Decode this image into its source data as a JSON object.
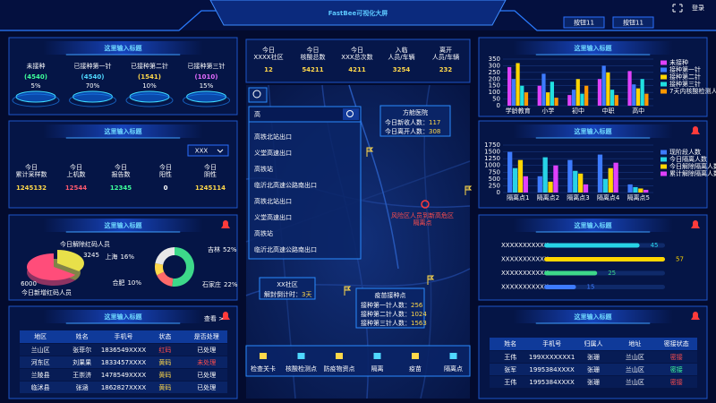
{
  "header": {
    "title": "FastBee可视化大屏",
    "buttons": [
      "按钮11",
      "按钮11"
    ],
    "login": "登录"
  },
  "vaccination": {
    "title": "这里输入标题",
    "items": [
      {
        "label": "未接种",
        "count": "(4540)",
        "percent": "5%",
        "color": "#3dff9a"
      },
      {
        "label": "已接种第一针",
        "count": "(4540)",
        "percent": "70%",
        "color": "#4fd8ff"
      },
      {
        "label": "已接种第二针",
        "count": "(1541)",
        "percent": "10%",
        "color": "#ffd84a"
      },
      {
        "label": "已接种第三针",
        "count": "(1010)",
        "percent": "15%",
        "color": "#e46bff"
      }
    ]
  },
  "sampling": {
    "title": "这里输入标题",
    "select": "XXX",
    "stats": [
      {
        "label": [
          "今日",
          "累计采样数"
        ],
        "value": 1245132,
        "color": "#ffd84a"
      },
      {
        "label": [
          "今日",
          "上机数"
        ],
        "value": 12544,
        "color": "#ff5a6e"
      },
      {
        "label": [
          "今日",
          "报告数"
        ],
        "value": 12345,
        "color": "#3dff9a"
      },
      {
        "label": [
          "今日",
          "阳性"
        ],
        "value": 0,
        "color": "#ffffff"
      },
      {
        "label": [
          "今日",
          "阴性"
        ],
        "value": 1245114,
        "color": "#ffd84a"
      }
    ]
  },
  "records": {
    "title": "这里输入标题",
    "more": "查看 >",
    "columns": [
      "地区",
      "姓名",
      "手机号",
      "状态",
      "是否处理"
    ],
    "rows": [
      [
        "兰山区",
        "张菲尔",
        "1836549XXXX",
        "红码",
        "已处理"
      ],
      [
        "河东区",
        "刘果果",
        "1833457XXXX",
        "黄码",
        "未处理"
      ],
      [
        "兰陵县",
        "王崇济",
        "1478549XXXX",
        "黄码",
        "已处理"
      ],
      [
        "临沭县",
        "张涵",
        "1862827XXXX",
        "黄码",
        "已处理"
      ]
    ],
    "colors": [
      [
        "#fff",
        "#fff",
        "#fff",
        "#ff4d4d",
        "#fff"
      ],
      [
        "#fff",
        "#fff",
        "#fff",
        "#ffd84a",
        "#ff4d4d"
      ],
      [
        "#fff",
        "#fff",
        "#fff",
        "#ffd84a",
        "#fff"
      ],
      [
        "#fff",
        "#fff",
        "#fff",
        "#ffd84a",
        "#fff"
      ]
    ]
  },
  "center": {
    "stats": [
      {
        "label": [
          "今日",
          "XXXX社区"
        ],
        "value": 12
      },
      {
        "label": [
          "今日",
          "核酸总数"
        ],
        "value": 54211
      },
      {
        "label": [
          "今日",
          "XXX总次数"
        ],
        "value": 4211
      },
      {
        "label": [
          "入临",
          "人员/车辆"
        ],
        "value": 3254
      },
      {
        "label": [
          "离开",
          "人员/车辆"
        ],
        "value": 232
      }
    ],
    "search": {
      "query": "高",
      "results": [
        "高铁北站出口",
        "义堂高速出口",
        "高铁站",
        "临沂北高速公路南出口",
        "高铁北站出口",
        "义堂高速出口",
        "高铁站",
        "临沂北高速公路南出口"
      ]
    },
    "hospital": {
      "title": "方舱医院",
      "lines": [
        [
          "今日新收人数：",
          117
        ],
        [
          "今日离开人数：",
          308
        ]
      ]
    },
    "community": {
      "title": "XX社区",
      "lines": [
        [
          "解封倒计时：",
          "3天"
        ]
      ]
    },
    "vaccine_point": {
      "title": "疫苗接种点",
      "lines": [
        [
          "接种第一针人数：",
          256
        ],
        [
          "接种第二针人数：",
          1024
        ],
        [
          "接种第三针人数：",
          1563
        ]
      ]
    },
    "risk": [
      "风险区人员到新高危区",
      "隔离点"
    ],
    "toolbar": [
      "检查关卡",
      "核酸检测点",
      "防疫物资点",
      "隔离",
      "疫苗",
      "隔离点"
    ]
  },
  "contacts": {
    "title": "这里输入标题",
    "columns": [
      "姓名",
      "手机号",
      "归属人",
      "地址",
      "密接状态"
    ],
    "rows": [
      [
        "王伟",
        "199XXXXXXX1",
        "张珊",
        "兰山区",
        "密接"
      ],
      [
        "张军",
        "1995384XXXX",
        "张珊",
        "兰山区",
        "密接"
      ],
      [
        "王伟",
        "1995384XXXX",
        "张珊",
        "兰山区",
        "密接"
      ]
    ],
    "status_colors": [
      "#ff4d4d",
      "#3dff9a",
      "#ff4d4d"
    ]
  },
  "chart_data": [
    {
      "type": "pie3d",
      "title": "这里输入标题",
      "categories": [
        "今日解除红码人员",
        "今日新增红码人员"
      ],
      "values": [
        3245,
        6000
      ],
      "colors": [
        "#e8e04a",
        "#ff4d7a"
      ]
    },
    {
      "type": "donut",
      "categories": [
        "吉林",
        "上海",
        "合肥",
        "石家庄"
      ],
      "values": [
        52,
        16,
        10,
        22
      ],
      "value_labels": [
        "52%",
        "16%",
        "10%",
        "22%"
      ],
      "colors": [
        "#3dd98a",
        "#ff6a6a",
        "#ffd84a",
        "#e8e8e8"
      ]
    },
    {
      "type": "bar",
      "title": "这里输入标题",
      "categories": [
        "学龄教育",
        "小学",
        "初中",
        "中职",
        "高中"
      ],
      "series": [
        {
          "name": "未接种",
          "color": "#e040fb",
          "values": [
            290,
            150,
            80,
            200,
            260
          ]
        },
        {
          "name": "接种第一针",
          "color": "#3d7bff",
          "values": [
            200,
            240,
            120,
            300,
            160
          ]
        },
        {
          "name": "接种第二针",
          "color": "#ffd600",
          "values": [
            320,
            100,
            200,
            250,
            130
          ]
        },
        {
          "name": "接种第三针",
          "color": "#20e0e0",
          "values": [
            150,
            180,
            90,
            120,
            200
          ]
        },
        {
          "name": "7天内核酸检测人数",
          "color": "#ff9800",
          "values": [
            100,
            60,
            150,
            80,
            90
          ]
        }
      ],
      "ylim": [
        0,
        350
      ],
      "yticks": [
        0,
        50,
        100,
        150,
        200,
        250,
        300,
        350
      ]
    },
    {
      "type": "bar",
      "title": "这里输入标题",
      "categories": [
        "隔离点1",
        "隔离点2",
        "隔离点3",
        "隔离点4",
        "隔离点5"
      ],
      "series": [
        {
          "name": "现阶段人数",
          "color": "#3d7bff",
          "values": [
            1500,
            600,
            1200,
            1400,
            300
          ]
        },
        {
          "name": "今日隔离人数",
          "color": "#27d3e6",
          "values": [
            900,
            1300,
            800,
            500,
            200
          ]
        },
        {
          "name": "今日解除隔离人数",
          "color": "#ffd600",
          "values": [
            1200,
            400,
            700,
            900,
            150
          ]
        },
        {
          "name": "累计解除隔离人数",
          "color": "#e040fb",
          "values": [
            600,
            1000,
            300,
            1100,
            100
          ]
        }
      ],
      "ylim": [
        0,
        1750
      ],
      "yticks": [
        0,
        250,
        500,
        750,
        1000,
        1250,
        1500,
        1750
      ]
    },
    {
      "type": "hbar",
      "title": "这里输入标题",
      "categories": [
        "XXXXXXXXXXX",
        "XXXXXXXXXXX",
        "XXXXXXXXXXX",
        "XXXXXXXXXXX"
      ],
      "values": [
        45,
        57,
        25,
        15
      ],
      "colors": [
        "#27d3e6",
        "#ffd600",
        "#3dd98a",
        "#3d7bff"
      ]
    }
  ]
}
